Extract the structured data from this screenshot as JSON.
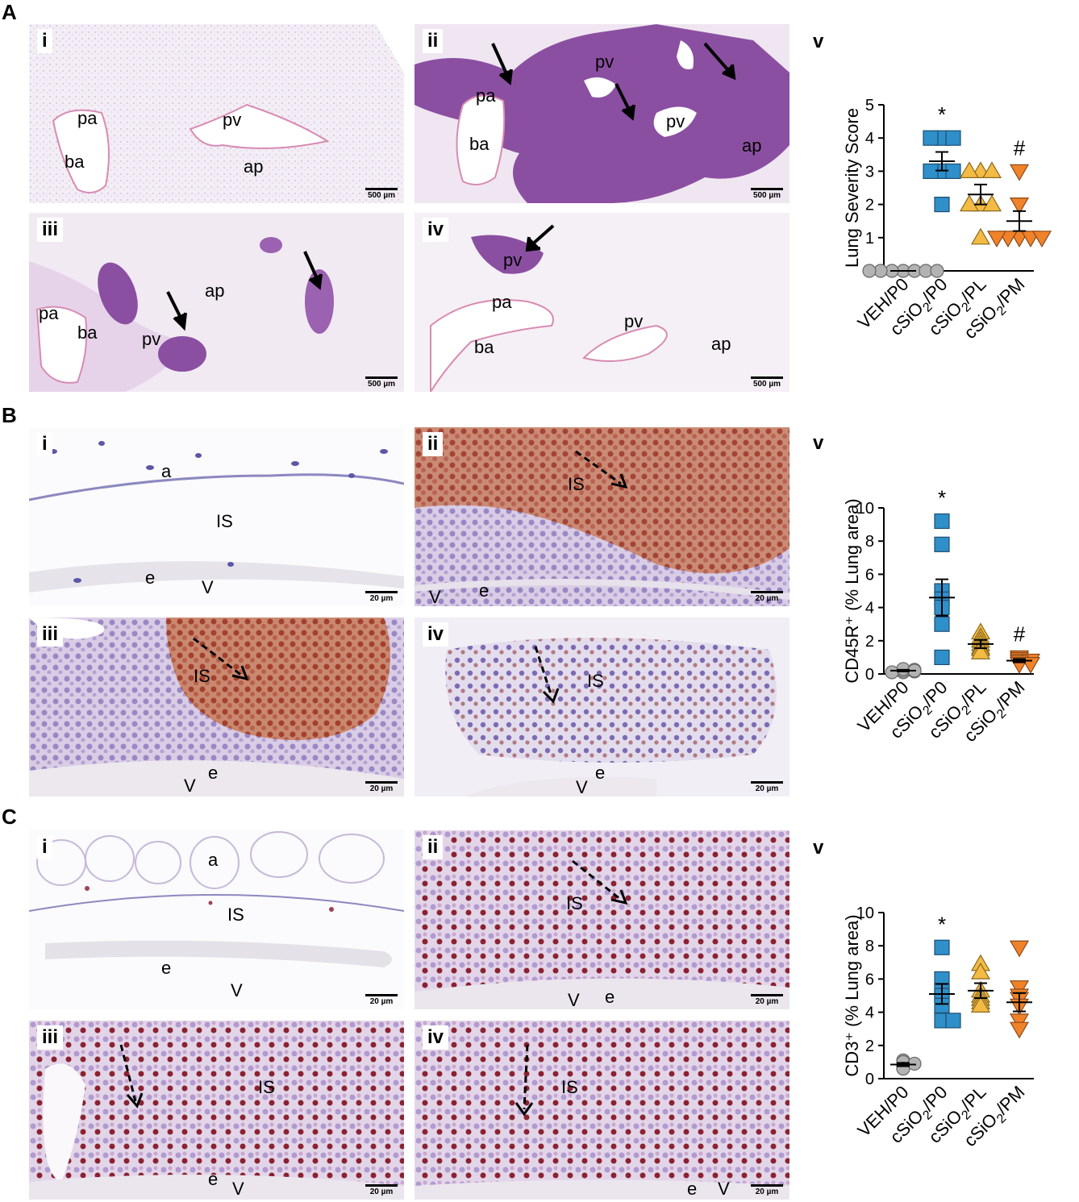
{
  "panels": [
    {
      "letter": "A",
      "scale": "500 µm",
      "images": [
        {
          "tag": "i",
          "style": "he_normal",
          "labels": [
            "pa",
            "ba",
            "pv",
            "ap"
          ]
        },
        {
          "tag": "ii",
          "style": "he_severe",
          "labels": [
            "pa",
            "ba",
            "pv",
            "pv",
            "ap"
          ]
        },
        {
          "tag": "iii",
          "style": "he_moderate",
          "labels": [
            "pa",
            "ba",
            "pv",
            "ap"
          ]
        },
        {
          "tag": "iv",
          "style": "he_mild",
          "labels": [
            "pv",
            "pa",
            "ba",
            "pv",
            "ap"
          ]
        }
      ],
      "chart_tag": "v"
    },
    {
      "letter": "B",
      "scale": "20 µm",
      "images": [
        {
          "tag": "i",
          "style": "ihc_normal",
          "labels": [
            "a",
            "IS",
            "e",
            "V"
          ]
        },
        {
          "tag": "ii",
          "style": "ihc_dense",
          "labels": [
            "IS",
            "V",
            "e"
          ]
        },
        {
          "tag": "iii",
          "style": "ihc_moderate",
          "labels": [
            "IS",
            "V",
            "e"
          ]
        },
        {
          "tag": "iv",
          "style": "ihc_mild",
          "labels": [
            "IS",
            "V",
            "e"
          ]
        }
      ],
      "chart_tag": "v"
    },
    {
      "letter": "C",
      "scale": "20 µm",
      "images": [
        {
          "tag": "i",
          "style": "ihc_normal",
          "labels": [
            "a",
            "IS",
            "e",
            "V"
          ]
        },
        {
          "tag": "ii",
          "style": "ihc_scattered",
          "labels": [
            "IS",
            "V",
            "e"
          ]
        },
        {
          "tag": "iii",
          "style": "ihc_scattered",
          "labels": [
            "IS",
            "e",
            "V"
          ]
        },
        {
          "tag": "iv",
          "style": "ihc_scattered",
          "labels": [
            "IS",
            "e",
            "V"
          ]
        }
      ],
      "chart_tag": "v"
    }
  ],
  "chart_data": [
    {
      "type": "scatter",
      "ylabel": "Lung Severity Score",
      "ylim": [
        0,
        5
      ],
      "yticks": [
        0,
        1,
        2,
        3,
        4,
        5
      ],
      "categories": [
        "VEH/P0",
        "cSiO2/P0",
        "cSiO2/PL",
        "cSiO2/PM"
      ],
      "series": [
        {
          "group": "VEH/P0",
          "marker": "circle",
          "color": "#b3b3b3",
          "points": [
            0,
            0,
            0,
            0,
            0,
            0,
            0
          ],
          "mean": 0,
          "sem": 0,
          "annotation": ""
        },
        {
          "group": "cSiO2/P0",
          "marker": "square",
          "color": "#2f8fc9",
          "points": [
            4,
            4,
            4,
            3,
            3,
            3,
            2
          ],
          "mean": 3.3,
          "sem": 0.28,
          "annotation": "*"
        },
        {
          "group": "cSiO2/PL",
          "marker": "triangle-up",
          "color": "#f4bb44",
          "points": [
            3,
            3,
            3,
            2,
            2,
            2,
            1
          ],
          "mean": 2.3,
          "sem": 0.3,
          "annotation": ""
        },
        {
          "group": "cSiO2/PM",
          "marker": "triangle-down",
          "color": "#f0822a",
          "points": [
            3,
            2,
            1,
            1,
            1,
            1,
            1
          ],
          "mean": 1.5,
          "sem": 0.3,
          "annotation": "#"
        }
      ]
    },
    {
      "type": "scatter",
      "ylabel": "CD45R⁺ (% Lung  area)",
      "ylim": [
        0,
        10
      ],
      "yticks": [
        0,
        2,
        4,
        6,
        8,
        10
      ],
      "categories": [
        "VEH/P0",
        "cSiO2/P0",
        "cSiO2/PL",
        "cSiO2/PM"
      ],
      "series": [
        {
          "group": "VEH/P0",
          "marker": "circle",
          "color": "#b3b3b3",
          "points": [
            0.1,
            0.2,
            0.3,
            0.15,
            0.25,
            0.1,
            0.2
          ],
          "mean": 0.2,
          "sem": 0.05,
          "annotation": ""
        },
        {
          "group": "cSiO2/P0",
          "marker": "square",
          "color": "#2f8fc9",
          "points": [
            9.2,
            7.8,
            5.0,
            4.5,
            4.0,
            3.0,
            1.0
          ],
          "mean": 4.6,
          "sem": 1.1,
          "annotation": "*"
        },
        {
          "group": "cSiO2/PL",
          "marker": "triangle-up",
          "color": "#f4bb44",
          "points": [
            2.5,
            2.2,
            2.0,
            1.8,
            1.6,
            1.5,
            1.3
          ],
          "mean": 1.8,
          "sem": 0.25,
          "annotation": ""
        },
        {
          "group": "cSiO2/PM",
          "marker": "triangle-down",
          "color": "#f0822a",
          "points": [
            1.0,
            0.9,
            0.8,
            0.8,
            0.7,
            0.6,
            0.6
          ],
          "mean": 0.8,
          "sem": 0.1,
          "annotation": "#"
        }
      ]
    },
    {
      "type": "scatter",
      "ylabel": "CD3⁺ (% Lung area)",
      "ylim": [
        0,
        10
      ],
      "yticks": [
        0,
        2,
        4,
        6,
        8,
        10
      ],
      "categories": [
        "VEH/P0",
        "cSiO2/P0",
        "cSiO2/PL",
        "cSiO2/PM"
      ],
      "series": [
        {
          "group": "VEH/P0",
          "marker": "circle",
          "color": "#b3b3b3",
          "points": [
            1.1,
            0.9,
            0.8,
            0.7,
            1.0,
            0.6,
            0.9
          ],
          "mean": 0.85,
          "sem": 0.1,
          "annotation": ""
        },
        {
          "group": "cSiO2/P0",
          "marker": "square",
          "color": "#2f8fc9",
          "points": [
            7.9,
            6.0,
            5.3,
            5.0,
            4.4,
            3.5,
            3.5
          ],
          "mean": 5.1,
          "sem": 0.6,
          "annotation": "*"
        },
        {
          "group": "cSiO2/PL",
          "marker": "triangle-up",
          "color": "#f4bb44",
          "points": [
            6.9,
            6.4,
            5.3,
            5.0,
            4.8,
            4.6,
            4.4
          ],
          "mean": 5.3,
          "sem": 0.45,
          "annotation": ""
        },
        {
          "group": "cSiO2/PM",
          "marker": "triangle-down",
          "color": "#f0822a",
          "points": [
            7.9,
            5.5,
            5.0,
            4.8,
            4.4,
            3.5,
            3.0
          ],
          "mean": 4.6,
          "sem": 0.55,
          "annotation": ""
        }
      ]
    }
  ]
}
